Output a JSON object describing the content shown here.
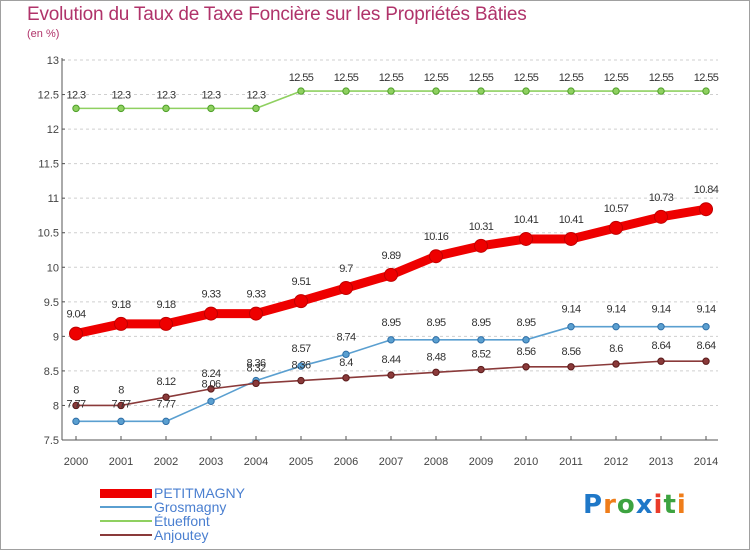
{
  "header": {
    "title": "Evolution du Taux de Taxe Foncière sur les Propriétés Bâties",
    "subtitle": "(en %)"
  },
  "logo": {
    "text": "Proxiti",
    "letters": [
      "P",
      "r",
      "o",
      "x",
      "i",
      "t",
      "i"
    ],
    "colors": [
      "#1f78c8",
      "#ef7d1a",
      "#3da340",
      "#1f78c8",
      "#e93b2a",
      "#3da340",
      "#ef7d1a"
    ]
  },
  "chart_data": {
    "type": "line",
    "title": "Evolution du Taux de Taxe Foncière sur les Propriétés Bâties",
    "ylabel": "(en %)",
    "xlabel": "",
    "x": [
      "2000",
      "2001",
      "2002",
      "2003",
      "2004",
      "2005",
      "2006",
      "2007",
      "2008",
      "2009",
      "2010",
      "2011",
      "2012",
      "2013",
      "2014"
    ],
    "ylim": [
      7.5,
      13
    ],
    "yticks": [
      "7.5",
      "8",
      "8.5",
      "9",
      "9.5",
      "10",
      "10.5",
      "11",
      "11.5",
      "12",
      "12.5",
      "13"
    ],
    "grid": "horizontal-dashed",
    "legend_position": "bottom-left",
    "series": [
      {
        "name": "PETITMAGNY",
        "color": "#ee0000",
        "values": [
          9.04,
          9.18,
          9.18,
          9.33,
          9.33,
          9.51,
          9.7,
          9.89,
          10.16,
          10.31,
          10.41,
          10.41,
          10.57,
          10.73,
          10.84
        ],
        "labels": [
          "9.04",
          "9.18",
          "9.18",
          "9.33",
          "9.33",
          "9.51",
          "9.7",
          "9.89",
          "10.16",
          "10.31",
          "10.41",
          "10.41",
          "10.57",
          "10.73",
          "10.84"
        ]
      },
      {
        "name": "Grosmagny",
        "color": "#4a90c8",
        "values": [
          7.77,
          7.77,
          7.77,
          8.06,
          8.36,
          8.57,
          8.74,
          8.95,
          8.95,
          8.95,
          8.95,
          9.14,
          9.14,
          9.14,
          9.14
        ],
        "labels": [
          "7.77",
          "7.77",
          "7.77",
          "8.06",
          "8.36",
          "8.57",
          "8.74",
          "8.95",
          "8.95",
          "8.95",
          "8.95",
          "9.14",
          "9.14",
          "9.14",
          "9.14"
        ]
      },
      {
        "name": "Étueffont",
        "color": "#7ec850",
        "values": [
          12.3,
          12.3,
          12.3,
          12.3,
          12.3,
          12.55,
          12.55,
          12.55,
          12.55,
          12.55,
          12.55,
          12.55,
          12.55,
          12.55,
          12.55
        ],
        "labels": [
          "12.3",
          "12.3",
          "12.3",
          "12.3",
          "12.3",
          "12.55",
          "12.55",
          "12.55",
          "12.55",
          "12.55",
          "12.55",
          "12.55",
          "12.55",
          "12.55",
          "12.55"
        ]
      },
      {
        "name": "Anjoutey",
        "color": "#7a2a2a",
        "values": [
          8,
          8,
          8.12,
          8.24,
          8.32,
          8.36,
          8.4,
          8.44,
          8.48,
          8.52,
          8.56,
          8.56,
          8.6,
          8.64,
          8.64
        ],
        "labels": [
          "8",
          "8",
          "8.12",
          "8.24",
          "8.32",
          "8.36",
          "8.4",
          "8.44",
          "8.48",
          "8.52",
          "8.56",
          "8.56",
          "8.6",
          "8.64",
          "8.64"
        ]
      }
    ]
  }
}
